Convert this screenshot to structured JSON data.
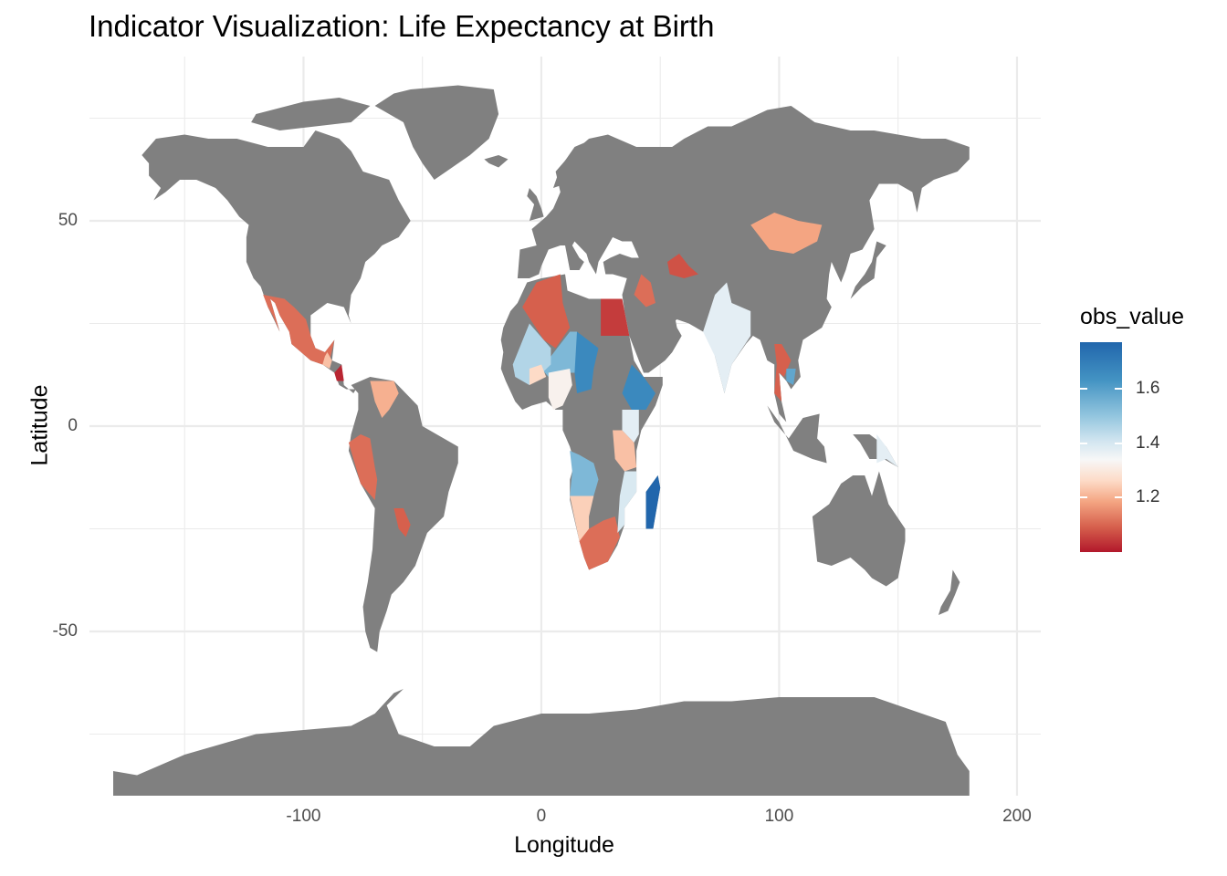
{
  "title": "Indicator Visualization: Life Expectancy at Birth",
  "x_axis": {
    "title": "Longitude",
    "ticks": [
      {
        "value": -100,
        "label": "-100"
      },
      {
        "value": 0,
        "label": "0"
      },
      {
        "value": 100,
        "label": "100"
      },
      {
        "value": 200,
        "label": "200"
      }
    ]
  },
  "y_axis": {
    "title": "Latitude",
    "ticks": [
      {
        "value": 50,
        "label": "50"
      },
      {
        "value": 0,
        "label": "0"
      },
      {
        "value": -50,
        "label": "-50"
      }
    ]
  },
  "legend": {
    "title": "obs_value",
    "ticks": [
      {
        "value": 1.6,
        "label": "1.6"
      },
      {
        "value": 1.4,
        "label": "1.4"
      },
      {
        "value": 1.2,
        "label": "1.2"
      }
    ]
  },
  "colors": {
    "land_no_data": "#808080",
    "grid": "#ebebeb",
    "high": "#2166ac",
    "mid": "#f7f7f7",
    "low": "#b2182b"
  },
  "chart_data": {
    "type": "heatmap",
    "title": "Indicator Visualization: Life Expectancy at Birth",
    "xlabel": "Longitude",
    "ylabel": "Latitude",
    "xlim": [
      -190,
      210
    ],
    "ylim": [
      -90,
      90
    ],
    "grid": true,
    "legend_placement": "right",
    "value_range": [
      1.0,
      1.77
    ],
    "regions": [
      {
        "name": "Mexico",
        "value": 1.12
      },
      {
        "name": "Guatemala",
        "value": 1.25
      },
      {
        "name": "Nicaragua",
        "value": 1.02
      },
      {
        "name": "Peru",
        "value": 1.12
      },
      {
        "name": "Paraguay",
        "value": 1.1
      },
      {
        "name": "Venezuela",
        "value": 1.22
      },
      {
        "name": "Algeria",
        "value": 1.1
      },
      {
        "name": "Egypt",
        "value": 1.05
      },
      {
        "name": "Niger",
        "value": 1.62
      },
      {
        "name": "Chad",
        "value": 1.7
      },
      {
        "name": "Ethiopia",
        "value": 1.7
      },
      {
        "name": "Mali",
        "value": 1.55
      },
      {
        "name": "Burkina Faso",
        "value": 1.3
      },
      {
        "name": "Nigeria",
        "value": 1.38
      },
      {
        "name": "Angola",
        "value": 1.62
      },
      {
        "name": "Namibia",
        "value": 1.28
      },
      {
        "name": "South Africa",
        "value": 1.12
      },
      {
        "name": "Madagascar",
        "value": 1.77
      },
      {
        "name": "Mozambique",
        "value": 1.48
      },
      {
        "name": "Tanzania",
        "value": 1.25
      },
      {
        "name": "Kenya",
        "value": 1.45
      },
      {
        "name": "India",
        "value": 1.45
      },
      {
        "name": "Mongolia",
        "value": 1.2
      },
      {
        "name": "Iraq",
        "value": 1.12
      },
      {
        "name": "Turkmenistan",
        "value": 1.08
      },
      {
        "name": "Thailand",
        "value": 1.1
      },
      {
        "name": "Cambodia",
        "value": 1.65
      },
      {
        "name": "Papua New Guinea",
        "value": 1.45
      }
    ]
  }
}
